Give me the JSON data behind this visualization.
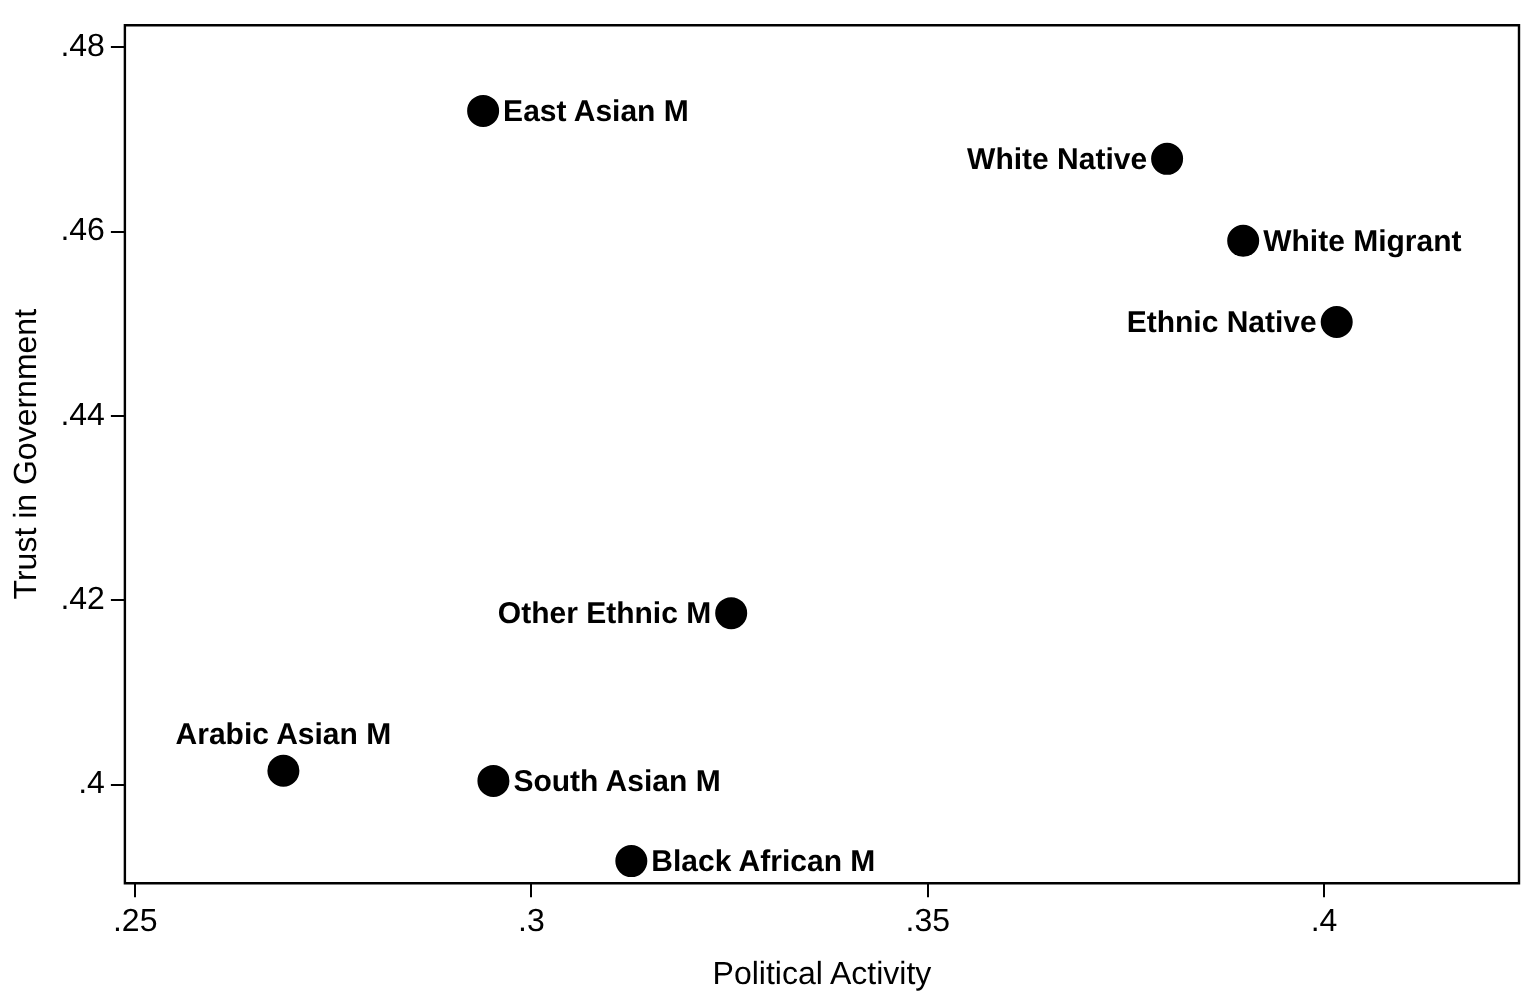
{
  "chart_data": {
    "type": "scatter",
    "xlabel": "Political Activity",
    "ylabel": "Trust in Government",
    "x": [
      0.2939,
      0.3802,
      0.3898,
      0.4016,
      0.3252,
      0.2687,
      0.2952,
      0.3126
    ],
    "series": [
      {
        "color": "#000000",
        "values": [
          0.4731,
          0.4679,
          0.459,
          0.4502,
          0.4186,
          0.4015,
          0.4004,
          0.3917
        ]
      }
    ],
    "marker": "circle",
    "grid": false,
    "legend": false,
    "xlim": [
      0.2487,
      0.4246
    ],
    "ylim": [
      0.3893,
      0.4824
    ],
    "xticks": [
      {
        "value": 0.25,
        "label": ".25"
      },
      {
        "value": 0.3,
        "label": ".3"
      },
      {
        "value": 0.35,
        "label": ".35"
      },
      {
        "value": 0.4,
        "label": ".4"
      }
    ],
    "yticks": [
      {
        "value": 0.4,
        "label": ".4"
      },
      {
        "value": 0.42,
        "label": ".42"
      },
      {
        "value": 0.44,
        "label": ".44"
      },
      {
        "value": 0.46,
        "label": ".46"
      },
      {
        "value": 0.48,
        "label": ".48"
      }
    ],
    "annotations": [
      {
        "text": "East Asian M",
        "x": 0.2939,
        "y": 0.4731
      },
      {
        "text": "White Native",
        "x": 0.3802,
        "y": 0.4679
      },
      {
        "text": "White Migrant",
        "x": 0.3898,
        "y": 0.459
      },
      {
        "text": "Ethnic Native",
        "x": 0.4016,
        "y": 0.4502
      },
      {
        "text": "Other Ethnic M",
        "x": 0.3252,
        "y": 0.4186
      },
      {
        "text": "Arabic Asian M",
        "x": 0.2687,
        "y": 0.4015
      },
      {
        "text": "South Asian M",
        "x": 0.2952,
        "y": 0.4004
      },
      {
        "text": "Black African M",
        "x": 0.3126,
        "y": 0.3917
      }
    ]
  }
}
